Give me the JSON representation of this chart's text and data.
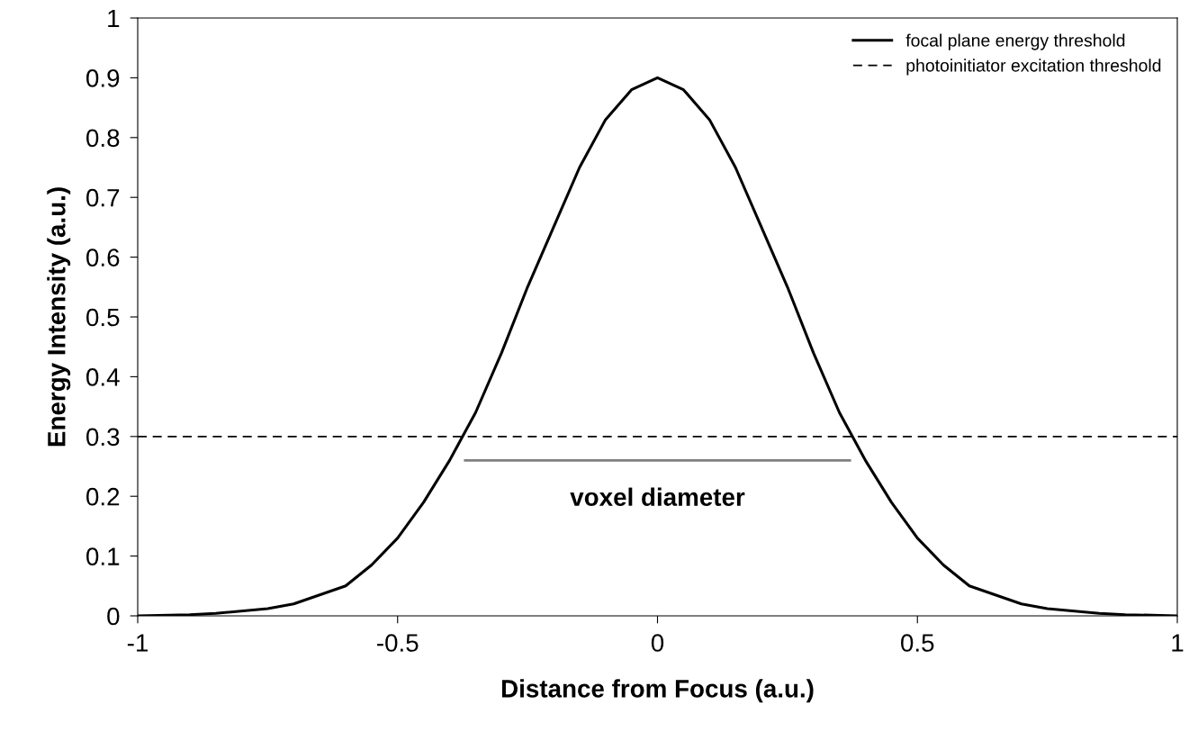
{
  "chart_data": {
    "type": "line",
    "xlabel": "Distance from Focus (a.u.)",
    "ylabel": "Energy Intensity (a.u.)",
    "series": [
      {
        "name": "focal plane energy threshold",
        "color": "#000000",
        "x": [
          -1,
          -0.9,
          -0.85,
          -0.75,
          -0.7,
          -0.6,
          -0.55,
          -0.5,
          -0.45,
          -0.4,
          -0.375,
          -0.35,
          -0.3,
          -0.25,
          -0.2,
          -0.15,
          -0.1,
          -0.05,
          0,
          0.05,
          0.1,
          0.15,
          0.2,
          0.25,
          0.3,
          0.35,
          0.375,
          0.4,
          0.45,
          0.5,
          0.55,
          0.6,
          0.7,
          0.75,
          0.85,
          0.9,
          1
        ],
        "values": [
          0.0,
          0.002,
          0.004,
          0.012,
          0.02,
          0.05,
          0.085,
          0.13,
          0.19,
          0.26,
          0.3,
          0.34,
          0.44,
          0.55,
          0.65,
          0.75,
          0.83,
          0.88,
          0.9,
          0.88,
          0.83,
          0.75,
          0.65,
          0.55,
          0.44,
          0.34,
          0.3,
          0.26,
          0.19,
          0.13,
          0.085,
          0.05,
          0.02,
          0.012,
          0.004,
          0.002,
          0.0
        ]
      },
      {
        "color": "#808080",
        "x": [
          -0.37,
          0.37
        ],
        "values": [
          0.26,
          0.26
        ]
      }
    ],
    "ref_lines": [
      {
        "axis": "y",
        "value": 0.3,
        "label": "photoinitiator excitation threshold",
        "color": "#000000",
        "line_style": "dashed"
      }
    ],
    "annotations": [
      "voxel diameter"
    ],
    "xlim": [
      -1,
      1
    ],
    "xticks": [
      -1,
      -0.5,
      0,
      0.5,
      1
    ],
    "ylim": [
      0,
      1
    ],
    "yticks": [
      0,
      0.1,
      0.2,
      0.3,
      0.4,
      0.5,
      0.6,
      0.7,
      0.8,
      0.9,
      1
    ],
    "grid": false,
    "legend": "top right",
    "marker": "none",
    "line_style": "solid"
  }
}
